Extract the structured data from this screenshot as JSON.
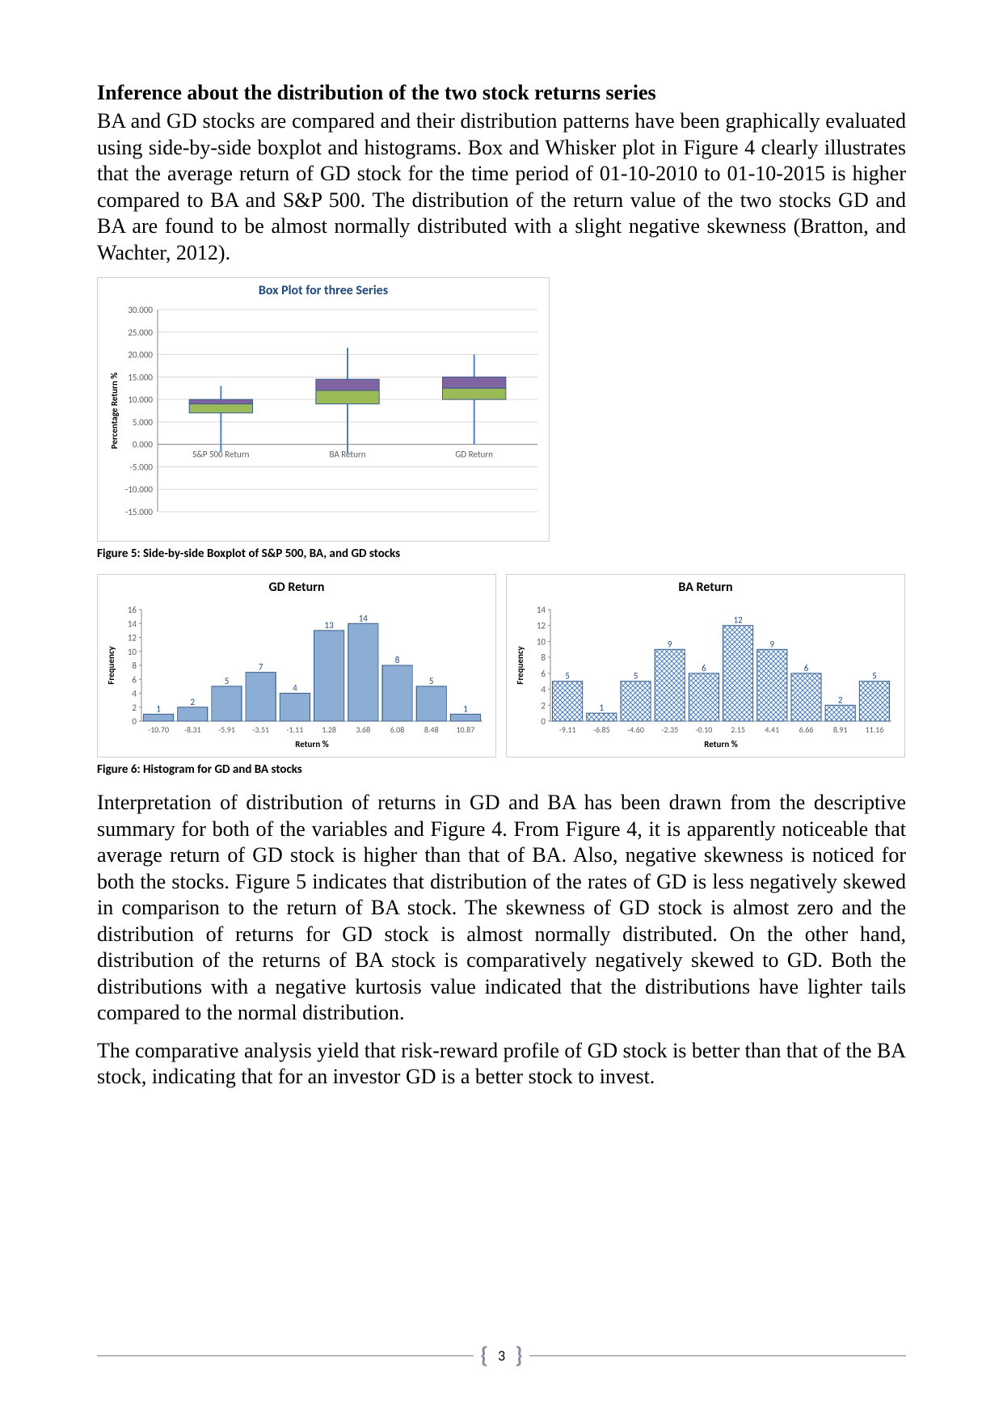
{
  "heading": "Inference about the distribution of the two stock returns series",
  "para1": "BA and GD stocks are compared and their distribution patterns have been graphically evaluated using side-by-side boxplot and histograms. Box and Whisker plot in Figure 4 clearly illustrates that the average return of GD stock for the time period of 01-10-2010 to 01-10-2015 is higher compared to BA and S&P 500. The distribution of the return value of the two stocks GD and BA are found to be almost normally distributed with a slight negative skewness (Bratton, and Wachter, 2012).",
  "boxplot": {
    "title": "Box Plot for three Series",
    "ylabel": "Percentage Return %",
    "yticks": [
      -15.0,
      -10.0,
      -5.0,
      0.0,
      5.0,
      10.0,
      15.0,
      20.0,
      25.0,
      30.0
    ],
    "categories": [
      "S&P 500 Return",
      "BA Return",
      "GD Return"
    ],
    "boxes": [
      {
        "whisker_lo": -1.5,
        "q1": 7.0,
        "median": 9.0,
        "q3": 10.0,
        "whisker_hi": 13.0
      },
      {
        "whisker_lo": -2.0,
        "q1": 9.0,
        "median": 12.0,
        "q3": 14.5,
        "whisker_hi": 21.5
      },
      {
        "whisker_lo": 0.0,
        "q1": 10.0,
        "median": 12.5,
        "q3": 15.0,
        "whisker_hi": 20.0
      }
    ],
    "upper_fill": "#8064a2",
    "lower_fill": "#9bbb59",
    "whisker_color": "#4f81bd",
    "border_color": "#385d8a",
    "ylabel_color": "#000090"
  },
  "caption5": "Figure 5: Side-by-side Boxplot of S&P 500, BA, and GD stocks",
  "histograms": {
    "gd": {
      "title": "GD Return",
      "xlabel": "Return %",
      "ylabel": "Frequency",
      "categories": [
        "-10.70",
        "-8.31",
        "-5.91",
        "-3.51",
        "-1.11",
        "1.28",
        "3.68",
        "6.08",
        "8.48",
        "10.87"
      ],
      "values": [
        1,
        2,
        5,
        7,
        4,
        13,
        14,
        8,
        5,
        1
      ],
      "ymax": 16,
      "ytick_step": 2,
      "bar_fill": "#4f81bd",
      "bar_border": "#385d8a",
      "pattern": "vlines"
    },
    "ba": {
      "title": "BA Return",
      "xlabel": "Return %",
      "ylabel": "Frequency",
      "categories": [
        "-9.11",
        "-6.85",
        "-4.60",
        "-2.35",
        "-0.10",
        "2.15",
        "4.41",
        "6.66",
        "8.91",
        "11.16"
      ],
      "values": [
        5,
        1,
        5,
        9,
        6,
        12,
        9,
        6,
        2,
        5
      ],
      "ymax": 14,
      "ytick_step": 2,
      "bar_fill": "#4f81bd",
      "bar_border": "#385d8a",
      "pattern": "crosshatch"
    }
  },
  "caption6": "Figure 6: Histogram for GD and BA stocks",
  "para2": "Interpretation of distribution of returns in GD and BA has been drawn from the descriptive summary for both of the variables and Figure 4. From Figure 4, it is apparently noticeable that average return of GD stock is higher than that of BA. Also, negative skewness is noticed for both the stocks. Figure 5 indicates that distribution of the rates of GD is less negatively skewed in comparison to the return of BA stock. The skewness of GD stock is almost zero and the distribution of returns for GD stock is almost normally distributed. On the other hand, distribution of the returns of BA stock is comparatively negatively skewed to GD. Both the distributions with a negative kurtosis value indicated that the distributions have lighter tails compared to the normal distribution.",
  "para3": "The comparative analysis yield that risk-reward profile of GD stock is better than that of the BA stock, indicating that for an investor GD is a better stock to invest.",
  "page_num": "3"
}
